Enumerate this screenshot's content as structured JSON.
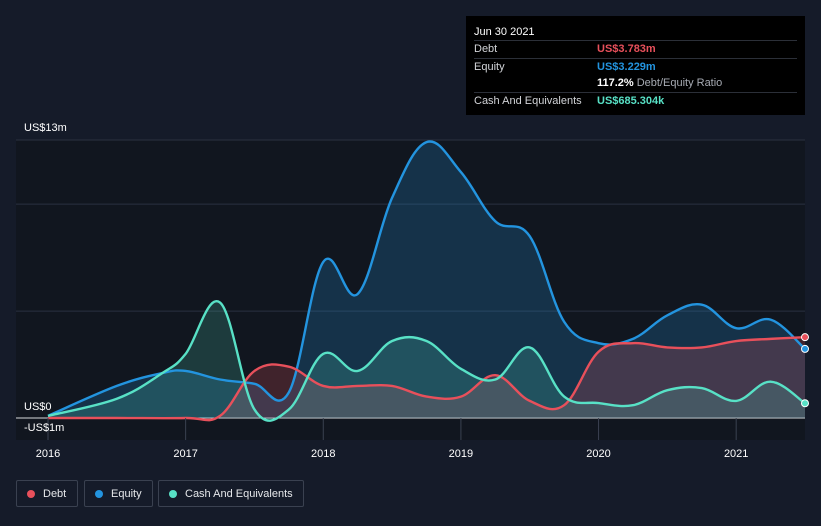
{
  "tooltip": {
    "date": "Jun 30 2021",
    "rows": [
      {
        "label": "Debt",
        "value": "US$3.783m",
        "color": "#e8505b"
      },
      {
        "label": "Equity",
        "value": "US$3.229m",
        "color": "#2394df"
      },
      {
        "label": "",
        "value": "117.2%",
        "sub": "Debt/Equity Ratio",
        "color": "#ffffff"
      },
      {
        "label": "Cash And Equivalents",
        "value": "US$685.304k",
        "color": "#58e1c6"
      }
    ]
  },
  "legend": [
    {
      "label": "Debt",
      "color": "#e8505b"
    },
    {
      "label": "Equity",
      "color": "#2394df"
    },
    {
      "label": "Cash And Equivalents",
      "color": "#58e1c6"
    }
  ],
  "chart_data": {
    "type": "area",
    "y_tick_labels": [
      "US$13m",
      "US$0",
      "-US$1m"
    ],
    "ylim": [
      -1,
      13
    ],
    "xlim": [
      2016,
      2021.5
    ],
    "x_tick_labels": [
      "2016",
      "2017",
      "2018",
      "2019",
      "2020",
      "2021"
    ],
    "x_ticks": [
      2016,
      2017,
      2018,
      2019,
      2020,
      2021
    ],
    "grid": true,
    "legend_position": "bottom-left",
    "series": [
      {
        "name": "Equity",
        "color": "#2394df",
        "points": [
          [
            2016.0,
            0.1
          ],
          [
            2016.5,
            1.5
          ],
          [
            2016.83,
            2.1
          ],
          [
            2017.0,
            2.2
          ],
          [
            2017.25,
            1.8
          ],
          [
            2017.5,
            1.6
          ],
          [
            2017.75,
            1.2
          ],
          [
            2018.0,
            7.3
          ],
          [
            2018.25,
            5.8
          ],
          [
            2018.5,
            10.3
          ],
          [
            2018.75,
            12.9
          ],
          [
            2019.0,
            11.5
          ],
          [
            2019.25,
            9.2
          ],
          [
            2019.5,
            8.5
          ],
          [
            2019.75,
            4.5
          ],
          [
            2020.0,
            3.5
          ],
          [
            2020.25,
            3.7
          ],
          [
            2020.5,
            4.8
          ],
          [
            2020.75,
            5.3
          ],
          [
            2021.0,
            4.2
          ],
          [
            2021.25,
            4.6
          ],
          [
            2021.5,
            3.23
          ]
        ]
      },
      {
        "name": "Debt",
        "color": "#e8505b",
        "points": [
          [
            2016.0,
            0.0
          ],
          [
            2016.5,
            0.0
          ],
          [
            2017.0,
            0.0
          ],
          [
            2017.25,
            0.1
          ],
          [
            2017.5,
            2.2
          ],
          [
            2017.75,
            2.4
          ],
          [
            2018.0,
            1.5
          ],
          [
            2018.25,
            1.5
          ],
          [
            2018.5,
            1.5
          ],
          [
            2018.75,
            1.0
          ],
          [
            2019.0,
            1.0
          ],
          [
            2019.25,
            2.0
          ],
          [
            2019.5,
            0.8
          ],
          [
            2019.75,
            0.6
          ],
          [
            2020.0,
            3.1
          ],
          [
            2020.25,
            3.5
          ],
          [
            2020.5,
            3.3
          ],
          [
            2020.75,
            3.3
          ],
          [
            2021.0,
            3.6
          ],
          [
            2021.25,
            3.7
          ],
          [
            2021.5,
            3.78
          ]
        ]
      },
      {
        "name": "Cash And Equivalents",
        "color": "#58e1c6",
        "points": [
          [
            2016.0,
            0.1
          ],
          [
            2016.5,
            0.9
          ],
          [
            2016.83,
            2.1
          ],
          [
            2017.0,
            3.0
          ],
          [
            2017.25,
            5.4
          ],
          [
            2017.5,
            0.4
          ],
          [
            2017.75,
            0.4
          ],
          [
            2018.0,
            3.0
          ],
          [
            2018.25,
            2.2
          ],
          [
            2018.5,
            3.6
          ],
          [
            2018.75,
            3.6
          ],
          [
            2019.0,
            2.3
          ],
          [
            2019.25,
            1.8
          ],
          [
            2019.5,
            3.3
          ],
          [
            2019.75,
            1.0
          ],
          [
            2020.0,
            0.7
          ],
          [
            2020.25,
            0.6
          ],
          [
            2020.5,
            1.3
          ],
          [
            2020.75,
            1.4
          ],
          [
            2021.0,
            0.8
          ],
          [
            2021.25,
            1.7
          ],
          [
            2021.5,
            0.69
          ]
        ]
      }
    ]
  }
}
